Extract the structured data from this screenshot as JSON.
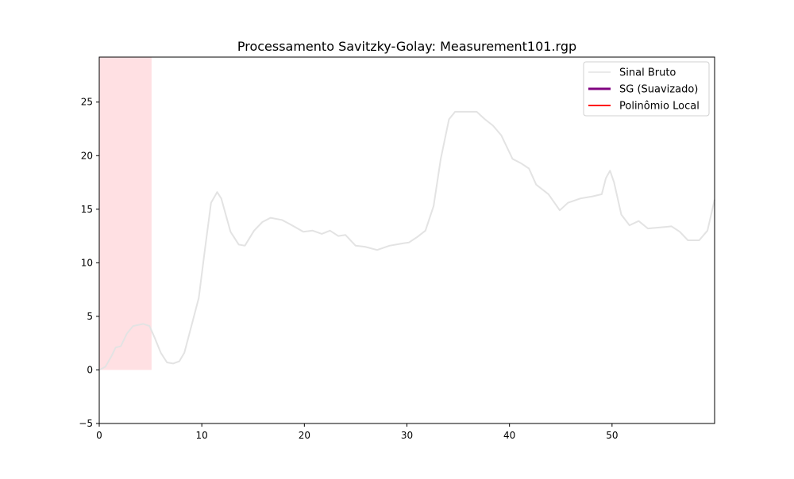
{
  "chart_data": {
    "type": "line",
    "title": "Processamento Savitzky-Golay: Measurement101.rgp",
    "xlabel": "",
    "ylabel": "",
    "xlim": [
      0,
      60
    ],
    "ylim": [
      -5,
      29.2
    ],
    "grid": false,
    "legend_position": "top-right",
    "x_ticks": [
      0,
      10,
      20,
      30,
      40,
      50
    ],
    "y_ticks": [
      -5,
      0,
      5,
      10,
      15,
      20,
      25
    ],
    "x_tick_labels": [
      "0",
      "10",
      "20",
      "30",
      "40",
      "50"
    ],
    "y_tick_labels": [
      "−5",
      "0",
      "5",
      "10",
      "15",
      "20",
      "25"
    ],
    "highlight_window": {
      "x": [
        0,
        5.1
      ],
      "y": [
        0,
        29.2
      ],
      "color": "#ffe0e3"
    },
    "series": [
      {
        "name": "Sinal Bruto",
        "color": "#e3e3e3",
        "x": [
          0,
          0.6,
          1.2,
          1.6,
          2.1,
          2.7,
          3.3,
          4.3,
          4.9,
          5.4,
          6.0,
          6.6,
          7.2,
          7.8,
          8.3,
          8.9,
          9.7,
          10.3,
          10.9,
          11.5,
          11.9,
          12.8,
          13.6,
          14.2,
          15.1,
          15.9,
          16.7,
          17.8,
          18.6,
          19.9,
          20.8,
          21.7,
          22.5,
          23.3,
          24.0,
          25.0,
          25.9,
          27.1,
          28.3,
          29.5,
          30.2,
          31.0,
          31.8,
          32.6,
          33.3,
          34.1,
          34.7,
          35.7,
          36.8,
          37.6,
          38.4,
          39.2,
          40.3,
          41.1,
          41.9,
          42.6,
          43.8,
          44.9,
          45.7,
          46.9,
          48.1,
          49.0,
          49.4,
          49.8,
          50.2,
          50.9,
          51.7,
          52.6,
          53.5,
          54.7,
          55.8,
          56.6,
          57.4,
          58.5,
          59.3,
          60.0
        ],
        "y": [
          0,
          0.3,
          1.3,
          2.1,
          2.2,
          3.4,
          4.1,
          4.3,
          4.1,
          3.0,
          1.6,
          0.7,
          0.6,
          0.8,
          1.6,
          3.8,
          6.7,
          11.2,
          15.6,
          16.6,
          16.0,
          12.9,
          11.7,
          11.6,
          13.0,
          13.8,
          14.2,
          14.0,
          13.6,
          12.9,
          13.0,
          12.7,
          13.0,
          12.5,
          12.6,
          11.6,
          11.5,
          11.2,
          11.6,
          11.8,
          11.9,
          12.4,
          13.0,
          15.3,
          19.7,
          23.4,
          24.1,
          24.1,
          24.1,
          23.4,
          22.8,
          21.9,
          19.7,
          19.3,
          18.8,
          17.3,
          16.4,
          14.9,
          15.6,
          16.0,
          16.2,
          16.4,
          17.9,
          18.6,
          17.5,
          14.5,
          13.5,
          13.9,
          13.2,
          13.3,
          13.4,
          12.9,
          12.1,
          12.1,
          13.0,
          15.9
        ]
      },
      {
        "name": "SG (Suavizado)",
        "color": "#800080",
        "x": [],
        "y": []
      },
      {
        "name": "Polinômio Local",
        "color": "#ff0000",
        "x": [],
        "y": []
      }
    ]
  }
}
